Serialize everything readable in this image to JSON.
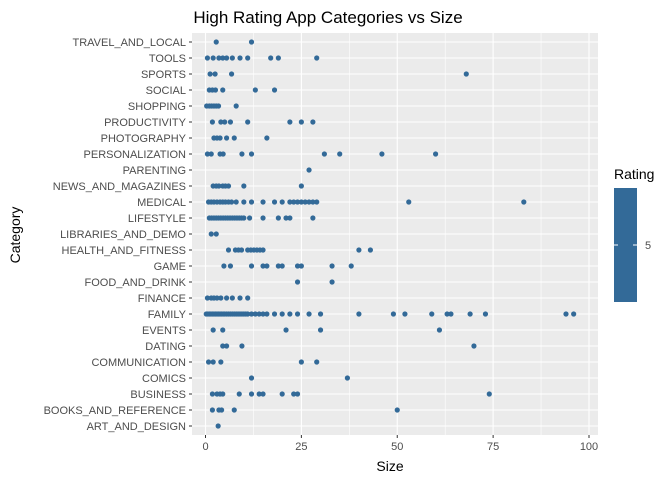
{
  "chart_data": {
    "type": "scatter",
    "title": "High Rating App Categories vs Size",
    "xlabel": "Size",
    "ylabel": "Category",
    "xlim": [
      -3,
      100
    ],
    "x_ticks": [
      0,
      25,
      50,
      75,
      100
    ],
    "grid": true,
    "point_color": "#336A98",
    "panel_background": "#EBEBEB",
    "legend": {
      "title": "Rating",
      "labels": [
        "5"
      ],
      "position": "right",
      "color": "#336A98"
    },
    "categories": [
      "ART_AND_DESIGN",
      "BOOKS_AND_REFERENCE",
      "BUSINESS",
      "COMICS",
      "COMMUNICATION",
      "DATING",
      "EVENTS",
      "FAMILY",
      "FINANCE",
      "FOOD_AND_DRINK",
      "GAME",
      "HEALTH_AND_FITNESS",
      "LIBRARIES_AND_DEMO",
      "LIFESTYLE",
      "MEDICAL",
      "NEWS_AND_MAGAZINES",
      "PARENTING",
      "PERSONALIZATION",
      "PHOTOGRAPHY",
      "PRODUCTIVITY",
      "SHOPPING",
      "SOCIAL",
      "SPORTS",
      "TOOLS",
      "TRAVEL_AND_LOCAL"
    ],
    "points": [
      {
        "category": "ART_AND_DESIGN",
        "x": [
          3.3
        ]
      },
      {
        "category": "BOOKS_AND_REFERENCE",
        "x": [
          1.8,
          3.5,
          4.2,
          7.5,
          50
        ]
      },
      {
        "category": "BUSINESS",
        "x": [
          1.8,
          3.0,
          3.8,
          4.5,
          8.8,
          12,
          14,
          15,
          20,
          23,
          24,
          74
        ]
      },
      {
        "category": "COMICS",
        "x": [
          12,
          37
        ]
      },
      {
        "category": "COMMUNICATION",
        "x": [
          0.8,
          2.0,
          4.0,
          25,
          29
        ]
      },
      {
        "category": "DATING",
        "x": [
          4.5,
          5.5,
          9.5,
          70
        ]
      },
      {
        "category": "EVENTS",
        "x": [
          2.0,
          4.5,
          21,
          30,
          61
        ]
      },
      {
        "category": "FAMILY",
        "x": [
          0.2,
          0.6,
          1.0,
          1.4,
          1.8,
          2.2,
          2.6,
          3.0,
          3.4,
          3.8,
          4.2,
          4.6,
          5.0,
          5.5,
          6.0,
          6.5,
          7.0,
          7.5,
          8.0,
          8.5,
          9.0,
          9.5,
          10,
          10.5,
          11,
          12,
          13,
          14,
          15,
          16,
          18,
          20,
          22,
          24,
          27,
          30,
          40,
          49,
          52,
          59,
          63,
          64,
          69,
          73,
          94,
          96
        ]
      },
      {
        "category": "FINANCE",
        "x": [
          0.5,
          1.5,
          2.2,
          3.0,
          4.0,
          5.5,
          7.0,
          9.0,
          11
        ]
      },
      {
        "category": "FOOD_AND_DRINK",
        "x": [
          24,
          33
        ]
      },
      {
        "category": "GAME",
        "x": [
          4.8,
          6.5,
          12,
          15,
          16,
          19,
          20,
          24,
          25,
          33,
          38
        ]
      },
      {
        "category": "HEALTH_AND_FITNESS",
        "x": [
          6.0,
          7.8,
          8.6,
          9.4,
          11,
          11.8,
          12.6,
          13.4,
          14.2,
          15,
          40,
          43
        ]
      },
      {
        "category": "LIBRARIES_AND_DEMO",
        "x": [
          1.5,
          2.8
        ]
      },
      {
        "category": "LIFESTYLE",
        "x": [
          1.0,
          1.6,
          2.2,
          2.8,
          3.4,
          4.0,
          4.6,
          5.2,
          5.8,
          6.4,
          7.0,
          7.6,
          8.2,
          8.8,
          9.4,
          10,
          11.5,
          15,
          19,
          21,
          22,
          28
        ]
      },
      {
        "category": "MEDICAL",
        "x": [
          0.8,
          1.5,
          2.2,
          3.0,
          3.8,
          4.5,
          5.2,
          6.0,
          6.8,
          8.0,
          10,
          12,
          15,
          18,
          20,
          22,
          23,
          24,
          25,
          26,
          27,
          28,
          29,
          53,
          83
        ]
      },
      {
        "category": "NEWS_AND_MAGAZINES",
        "x": [
          2.0,
          2.8,
          3.5,
          4.5,
          5.2,
          6.0,
          10,
          25
        ]
      },
      {
        "category": "PARENTING",
        "x": [
          27
        ]
      },
      {
        "category": "PERSONALIZATION",
        "x": [
          0.5,
          1.5,
          3.8,
          4.6,
          9.5,
          12,
          31,
          35,
          46,
          60
        ]
      },
      {
        "category": "PHOTOGRAPHY",
        "x": [
          2.2,
          3.0,
          3.8,
          5.5,
          7.5,
          16
        ]
      },
      {
        "category": "PRODUCTIVITY",
        "x": [
          1.8,
          4.0,
          5.0,
          6.5,
          11,
          22,
          25,
          28
        ]
      },
      {
        "category": "SHOPPING",
        "x": [
          0.3,
          1.0,
          1.6,
          2.2,
          2.8,
          3.4,
          8.0
        ]
      },
      {
        "category": "SOCIAL",
        "x": [
          1.0,
          1.8,
          2.6,
          4.5,
          13,
          18
        ]
      },
      {
        "category": "SPORTS",
        "x": [
          1.2,
          2.5,
          6.8,
          68
        ]
      },
      {
        "category": "TOOLS",
        "x": [
          0.5,
          2.0,
          3.5,
          4.5,
          5.5,
          7.0,
          9.0,
          11,
          17,
          19,
          29
        ]
      },
      {
        "category": "TRAVEL_AND_LOCAL",
        "x": [
          2.8,
          12
        ]
      }
    ]
  }
}
